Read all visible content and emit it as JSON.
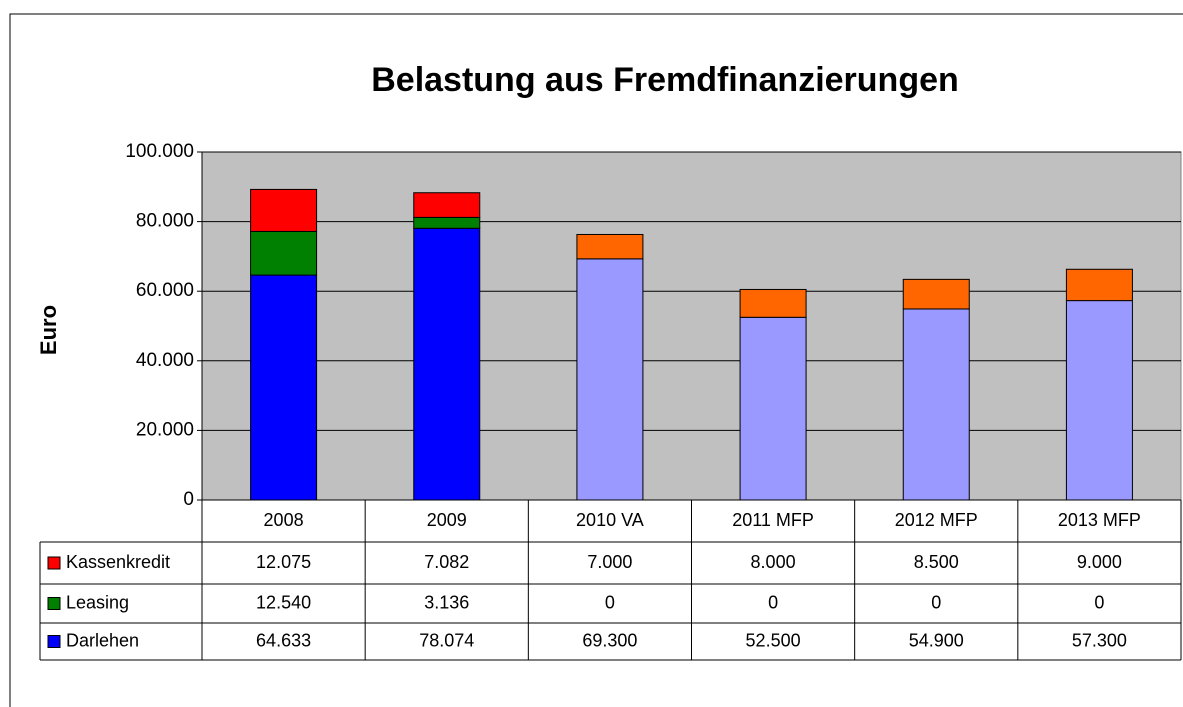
{
  "chart_data": {
    "type": "stacked_bar",
    "title": "Belastung aus Fremdfinanzierungen",
    "y_label": "Euro",
    "categories": [
      "2008",
      "2009",
      "2010 VA",
      "2011 MFP",
      "2012 MFP",
      "2013 MFP"
    ],
    "series": [
      {
        "name": "Kassenkredit",
        "color": "#ff0000",
        "point_colors": [
          "#ff0000",
          "#ff0000",
          "#ff6600",
          "#ff6600",
          "#ff6600",
          "#ff6600"
        ],
        "values": [
          12075,
          7082,
          7000,
          8000,
          8500,
          9000
        ],
        "value_labels": [
          "12.075",
          "7.082",
          "7.000",
          "8.000",
          "8.500",
          "9.000"
        ]
      },
      {
        "name": "Leasing",
        "color": "#008000",
        "point_colors": [
          "#008000",
          "#008000",
          "#008000",
          "#008000",
          "#008000",
          "#008000"
        ],
        "values": [
          12540,
          3136,
          0,
          0,
          0,
          0
        ],
        "value_labels": [
          "12.540",
          "3.136",
          "0",
          "0",
          "0",
          "0"
        ]
      },
      {
        "name": "Darlehen",
        "color": "#0000ff",
        "point_colors": [
          "#0000ff",
          "#0000ff",
          "#9999ff",
          "#9999ff",
          "#9999ff",
          "#9999ff"
        ],
        "values": [
          64633,
          78074,
          69300,
          52500,
          54900,
          57300
        ],
        "value_labels": [
          "64.633",
          "78.074",
          "69.300",
          "52.500",
          "54.900",
          "57.300"
        ]
      }
    ],
    "ylim": [
      0,
      100000
    ],
    "yticks": [
      0,
      {
        "value": 20000,
        "label": "20.000"
      },
      {
        "value": 40000,
        "label": "40.000"
      },
      {
        "value": 60000,
        "label": "60.000"
      },
      {
        "value": 80000,
        "label": "80.000"
      },
      {
        "value": 100000,
        "label": "100.000"
      }
    ],
    "grid": true,
    "plot_background": "#c0c0c0"
  }
}
